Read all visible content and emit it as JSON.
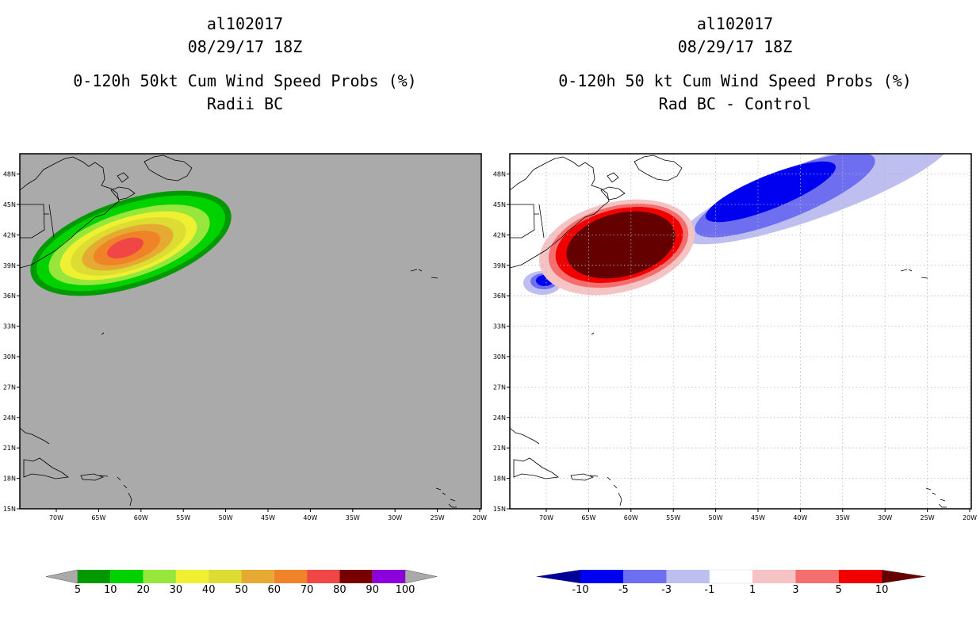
{
  "left_panel": {
    "storm_id": "al102017",
    "datetime": "08/29/17 18Z",
    "product": "0-120h 50kt Cum Wind Speed Probs (%)",
    "subtitle": "Radii BC"
  },
  "right_panel": {
    "storm_id": "al102017",
    "datetime": "08/29/17 18Z",
    "product": "0-120h 50 kt Cum Wind Speed Probs (%)",
    "subtitle": "Rad BC - Control"
  },
  "axes": {
    "lon_labels": [
      "70W",
      "65W",
      "60W",
      "55W",
      "50W",
      "45W",
      "40W",
      "35W",
      "30W",
      "25W",
      "20W"
    ],
    "lat_labels": [
      "15N",
      "18N",
      "21N",
      "24N",
      "27N",
      "30N",
      "33N",
      "36N",
      "39N",
      "42N",
      "45N",
      "48N"
    ]
  },
  "colors": {
    "land_background_left": "#aaaaaa",
    "prob_levels": [
      "#009a00",
      "#00d200",
      "#96e63c",
      "#f0f032",
      "#dcdc32",
      "#e6aa32",
      "#f08228",
      "#f04646",
      "#780000",
      "#8c00dc"
    ],
    "diff_levels": [
      "#000096",
      "#0000f0",
      "#6e6ef0",
      "#bebef0",
      "#ffffff",
      "#f5c3c3",
      "#f56e6e",
      "#f00000",
      "#640000"
    ]
  },
  "left_colorbar": {
    "labels": [
      "5",
      "10",
      "20",
      "30",
      "40",
      "50",
      "60",
      "70",
      "80",
      "90",
      "100"
    ]
  },
  "right_colorbar": {
    "labels": [
      "-10",
      "-5",
      "-3",
      "-1",
      "1",
      "3",
      "5",
      "10"
    ]
  }
}
